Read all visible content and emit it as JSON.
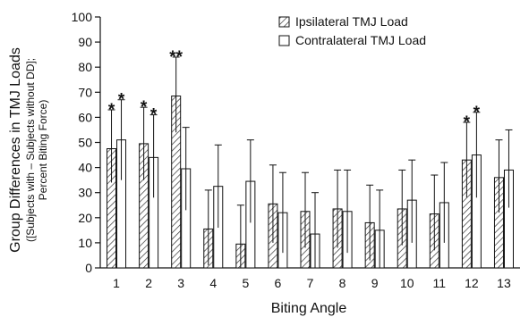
{
  "chart_data": {
    "type": "bar",
    "xlabel": "Biting Angle",
    "ylabel": "Group Differences in TMJ Loads",
    "ylabel_sub1": "([Subjects with – Subjects without DD];",
    "ylabel_sub2": "Percent Biting Force)",
    "ylim": [
      0,
      100
    ],
    "yticks": [
      0,
      10,
      20,
      30,
      40,
      50,
      60,
      70,
      80,
      90,
      100
    ],
    "categories": [
      "1",
      "2",
      "3",
      "4",
      "5",
      "6",
      "7",
      "8",
      "9",
      "10",
      "11",
      "12",
      "13"
    ],
    "legend_position": "top-right",
    "series": [
      {
        "name": "Ipsilateral TMJ Load",
        "pattern": "hatched",
        "values": [
          47.5,
          49.5,
          68.5,
          15.5,
          9.5,
          25.5,
          22.5,
          23.5,
          18.0,
          23.5,
          21.5,
          43.0,
          36.0
        ],
        "err_upper": [
          63,
          64,
          84,
          31,
          25,
          41,
          38,
          39,
          33,
          39,
          37,
          58,
          51
        ],
        "err_lower": [
          34,
          35,
          54,
          1,
          0,
          10,
          8,
          8,
          3,
          9,
          7,
          28,
          22
        ],
        "sig": [
          "*",
          "*",
          "**",
          "",
          "",
          "",
          "",
          "",
          "",
          "",
          "",
          "*",
          ""
        ]
      },
      {
        "name": "Contralateral TMJ Load",
        "pattern": "open",
        "values": [
          51.0,
          44.0,
          39.5,
          32.5,
          34.5,
          22.0,
          13.5,
          22.5,
          15.0,
          27.0,
          26.0,
          45.0,
          39.0
        ],
        "err_upper": [
          67,
          61,
          56,
          49,
          51,
          38,
          30,
          39,
          31,
          43,
          42,
          62,
          55
        ],
        "err_lower": [
          35,
          28,
          23,
          16,
          18,
          6,
          0,
          6,
          0,
          10,
          10,
          28,
          24
        ],
        "sig": [
          "*",
          "*",
          "",
          "",
          "",
          "",
          "",
          "",
          "",
          "",
          "",
          "*",
          ""
        ]
      }
    ]
  }
}
